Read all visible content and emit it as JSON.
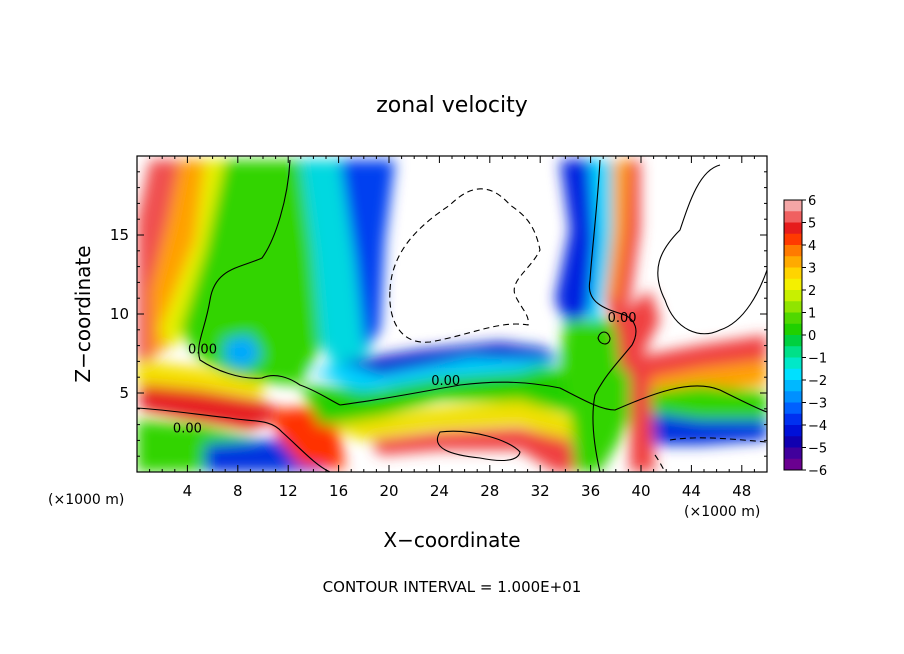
{
  "chart_data": {
    "type": "heatmap",
    "title": "zonal velocity",
    "xlabel": "X−coordinate",
    "ylabel": "Z−coordinate",
    "x_unit": "(×1000 m)",
    "y_unit": "(×1000 m)",
    "xlim": [
      0,
      50
    ],
    "ylim": [
      0,
      20
    ],
    "x_ticks": [
      4,
      8,
      12,
      16,
      20,
      24,
      28,
      32,
      36,
      40,
      44,
      48
    ],
    "y_ticks": [
      5,
      10,
      15
    ],
    "colorbar": {
      "min": -6,
      "max": 6,
      "tick_labels": [
        "6",
        "5",
        "4",
        "3",
        "2",
        "1",
        "0",
        "−1",
        "−2",
        "−3",
        "−4",
        "−5",
        "−6"
      ],
      "levels": [
        {
          "from": 5.5,
          "to": 6,
          "color": "#f4a6a6"
        },
        {
          "from": 5,
          "to": 5.5,
          "color": "#f06060"
        },
        {
          "from": 4.5,
          "to": 5,
          "color": "#e61c1c"
        },
        {
          "from": 4,
          "to": 4.5,
          "color": "#ff3a00"
        },
        {
          "from": 3.5,
          "to": 4,
          "color": "#ff7a00"
        },
        {
          "from": 3,
          "to": 3.5,
          "color": "#ffaa00"
        },
        {
          "from": 2.5,
          "to": 3,
          "color": "#ffd400"
        },
        {
          "from": 2,
          "to": 2.5,
          "color": "#f4f000"
        },
        {
          "from": 1.5,
          "to": 2,
          "color": "#c8f000"
        },
        {
          "from": 1,
          "to": 1.5,
          "color": "#90e400"
        },
        {
          "from": 0.5,
          "to": 1,
          "color": "#50d800"
        },
        {
          "from": 0,
          "to": 0.5,
          "color": "#20d000"
        },
        {
          "from": -0.5,
          "to": 0,
          "color": "#00d040"
        },
        {
          "from": -1,
          "to": -0.5,
          "color": "#00e088"
        },
        {
          "from": -1.5,
          "to": -1,
          "color": "#00e8c8"
        },
        {
          "from": -2,
          "to": -1.5,
          "color": "#00e0ff"
        },
        {
          "from": -2.5,
          "to": -2,
          "color": "#00b8ff"
        },
        {
          "from": -3,
          "to": -2.5,
          "color": "#0090ff"
        },
        {
          "from": -3.5,
          "to": -3,
          "color": "#0060ff"
        },
        {
          "from": -4,
          "to": -3.5,
          "color": "#0030f0"
        },
        {
          "from": -4.5,
          "to": -4,
          "color": "#0010d8"
        },
        {
          "from": -5,
          "to": -4.5,
          "color": "#1000b0"
        },
        {
          "from": -5.5,
          "to": -5,
          "color": "#40009c"
        },
        {
          "from": -6,
          "to": -5.5,
          "color": "#6a0090"
        }
      ]
    },
    "contour_labels": [
      {
        "text": "0.00",
        "x": 5.2,
        "y": 7.5
      },
      {
        "text": "0.00",
        "x": 4.0,
        "y": 2.5
      },
      {
        "text": "0.00",
        "x": 24.5,
        "y": 5.5
      },
      {
        "text": "0.00",
        "x": 38.5,
        "y": 9.5
      }
    ],
    "footer": "CONTOUR INTERVAL =  1.000E+01"
  }
}
